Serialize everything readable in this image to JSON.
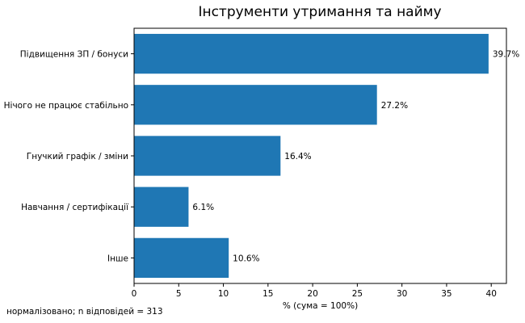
{
  "chart_data": {
    "type": "bar",
    "orientation": "horizontal",
    "title": "Інструменти утримання та найму",
    "xlabel": "% (сума = 100%)",
    "ylabel": "",
    "categories": [
      "Підвищення ЗП / бонуси",
      "Нічого не працює стабільно",
      "Гнучкий графік / зміни",
      "Навчання / сертифікації",
      "Інше"
    ],
    "values": [
      39.7,
      27.2,
      16.4,
      6.1,
      10.6
    ],
    "data_labels": [
      "39.7%",
      "27.2%",
      "16.4%",
      "6.1%",
      "10.6%"
    ],
    "xlim": [
      0,
      41.7
    ],
    "xticks": [
      0,
      5,
      10,
      15,
      20,
      25,
      30,
      35,
      40
    ],
    "grid": false,
    "legend": "none",
    "bar_color": "#1f77b4"
  },
  "footnote": "нормалізовано; n відповідей = 313"
}
